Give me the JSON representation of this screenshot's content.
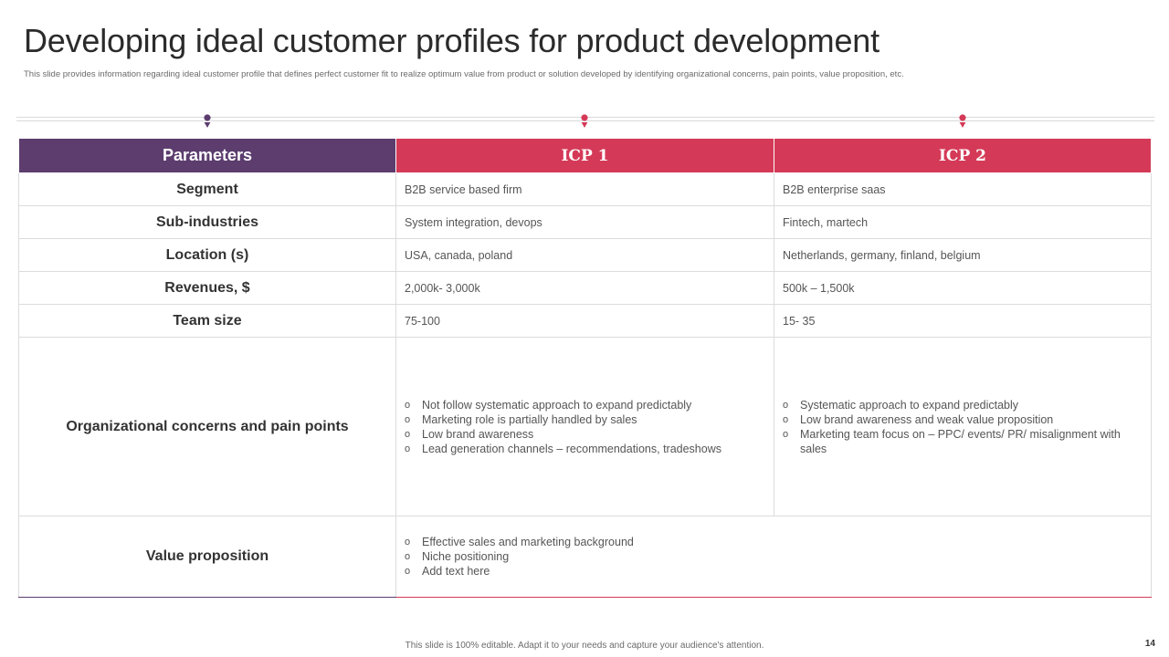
{
  "slide": {
    "title": "Developing ideal customer profiles for product development",
    "subtitle": "This slide provides information regarding ideal customer profile that defines perfect customer fit to realize optimum  value  from product or solution  developed  by identifying organizational concerns, pain points, value proposition, etc.",
    "footer": "This slide is 100% editable.  Adapt it to your needs and capture your audience's attention.",
    "page_number": "14"
  },
  "colors": {
    "parameters_header": "#5c3d6e",
    "icp_header": "#d43a57"
  },
  "markers": [
    {
      "icon": "map-pin-icon",
      "color": "#5c3d6e"
    },
    {
      "icon": "map-pin-icon",
      "color": "#d43a57"
    },
    {
      "icon": "map-pin-icon",
      "color": "#d43a57"
    }
  ],
  "table": {
    "headers": [
      "Parameters",
      "ICP 1",
      "ICP 2"
    ],
    "rows": [
      {
        "param": "Segment",
        "icp1": "B2B service based firm",
        "icp2": "B2B enterprise saas"
      },
      {
        "param": "Sub-industries",
        "icp1": "System integration, devops",
        "icp2": "Fintech, martech"
      },
      {
        "param": "Location (s)",
        "icp1": "USA, canada, poland",
        "icp2": "Netherlands,  germany,  finland,  belgium"
      },
      {
        "param": "Revenues, $",
        "icp1": "2,000k- 3,000k",
        "icp2": "500k – 1,500k"
      },
      {
        "param": "Team size",
        "icp1": "75-100",
        "icp2": "15-  35"
      }
    ],
    "concerns": {
      "param": "Organizational concerns and pain points",
      "icp1": [
        "Not follow  systematic approach to expand predictably",
        "Marketing role is partially handled by sales",
        "Low brand awareness",
        "Lead generation channels – recommendations,  tradeshows"
      ],
      "icp2": [
        "Systematic approach to expand predictably",
        "Low brand awareness  and weak value  proposition",
        "Marketing team focus on – PPC/ events/  PR/ misalignment with sales"
      ]
    },
    "value_proposition": {
      "param": "Value proposition",
      "items": [
        "Effective  sales  and  marketing background",
        "Niche  positioning",
        "Add text here"
      ]
    },
    "bullet_glyph": "o"
  }
}
